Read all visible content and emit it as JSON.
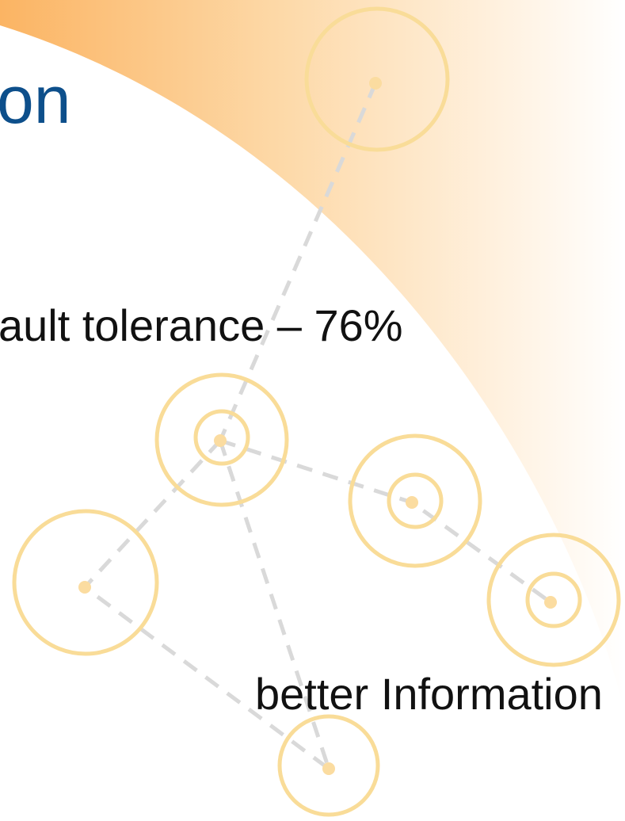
{
  "title": "on",
  "bullets": [
    "ault tolerance – 76%",
    "better Information"
  ]
}
